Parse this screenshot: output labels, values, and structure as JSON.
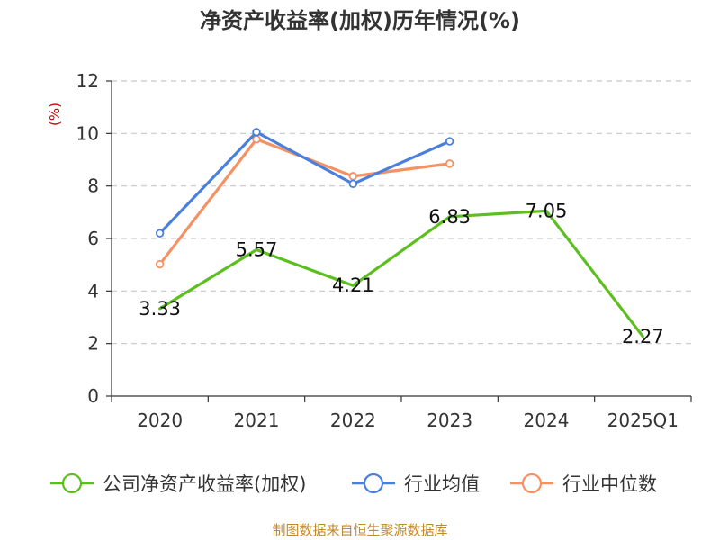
{
  "colors": {
    "company": "#5cbf1f",
    "industry_avg": "#4a7fdc",
    "industry_median": "#f59163",
    "axis": "#333333",
    "grid": "#c8c8c8",
    "unit": "#cc0000",
    "source": "#c08a2a"
  },
  "source_text": "制图数据来自恒生聚源数据库",
  "chart_data": {
    "type": "line",
    "title": "净资产收益率(加权)历年情况(%)",
    "ylabel": "(%)",
    "xlabel": "",
    "ylim": [
      0,
      12
    ],
    "yticks": [
      0,
      2,
      4,
      6,
      8,
      10,
      12
    ],
    "categories": [
      "2020",
      "2021",
      "2022",
      "2023",
      "2024",
      "2025Q1"
    ],
    "grid": true,
    "legend_position": "bottom",
    "series": [
      {
        "key": "company",
        "name": "公司净资产收益率(加权)",
        "values": [
          3.33,
          5.57,
          4.21,
          6.83,
          7.05,
          2.27
        ],
        "labels": [
          "3.33",
          "5.57",
          "4.21",
          "6.83",
          "7.05",
          "2.27"
        ],
        "show_markers": false
      },
      {
        "key": "industry_avg",
        "name": "行业均值",
        "values": [
          6.2,
          10.05,
          8.08,
          9.7,
          null,
          null
        ],
        "show_markers": true
      },
      {
        "key": "industry_median",
        "name": "行业中位数",
        "values": [
          5.02,
          9.78,
          8.37,
          8.85,
          null,
          null
        ],
        "show_markers": true
      }
    ]
  }
}
